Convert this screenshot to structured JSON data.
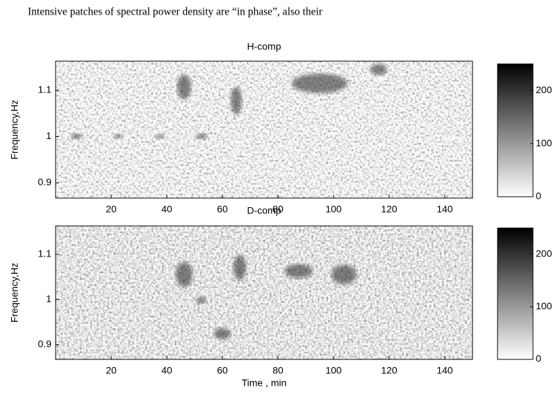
{
  "text": "Intensive patches of spectral power density are “in phase”, also their",
  "chart_data": [
    {
      "type": "heatmap",
      "title": "H-comp",
      "ylabel": "Frequency,Hz",
      "xlim": [
        0,
        150
      ],
      "xticks": [
        20,
        40,
        60,
        80,
        100,
        120,
        140
      ],
      "ylim": [
        0.867,
        1.163
      ],
      "yticks": [
        0.9,
        1,
        1.1
      ],
      "clim": [
        0,
        250
      ],
      "cticks": [
        0,
        100,
        200
      ]
    },
    {
      "type": "heatmap",
      "title": "D-comp",
      "ylabel": "Frequency,Hz",
      "xlabel": "Time , min",
      "xlim": [
        0,
        150
      ],
      "xticks": [
        20,
        40,
        60,
        80,
        100,
        120,
        140
      ],
      "ylim": [
        0.867,
        1.163
      ],
      "yticks": [
        0.9,
        1,
        1.1
      ],
      "clim": [
        0,
        250
      ],
      "cticks": [
        0,
        100,
        200
      ]
    }
  ]
}
